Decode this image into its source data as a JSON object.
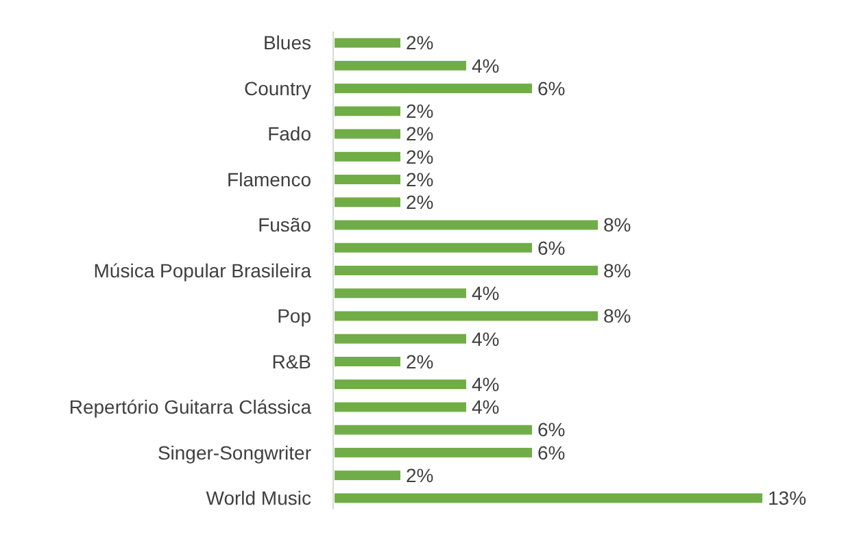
{
  "chart_data": {
    "type": "bar",
    "orientation": "horizontal",
    "categories": [
      "Blues",
      null,
      "Country",
      null,
      "Fado",
      null,
      "Flamenco",
      null,
      "Fusão",
      null,
      "Música Popular Brasileira",
      null,
      "Pop",
      null,
      "R&B",
      null,
      "Repertório Guitarra Clássica",
      null,
      "Singer-Songwriter",
      null,
      "World Music"
    ],
    "values": [
      2,
      4,
      6,
      2,
      2,
      2,
      2,
      2,
      8,
      6,
      8,
      4,
      8,
      4,
      2,
      4,
      4,
      6,
      6,
      2,
      13
    ],
    "value_labels": [
      "2%",
      "4%",
      "6%",
      "2%",
      "2%",
      "2%",
      "2%",
      "2%",
      "8%",
      "6%",
      "8%",
      "4%",
      "8%",
      "4%",
      "2%",
      "4%",
      "4%",
      "6%",
      "6%",
      "2%",
      "13%"
    ],
    "color": "#70ad47"
  }
}
